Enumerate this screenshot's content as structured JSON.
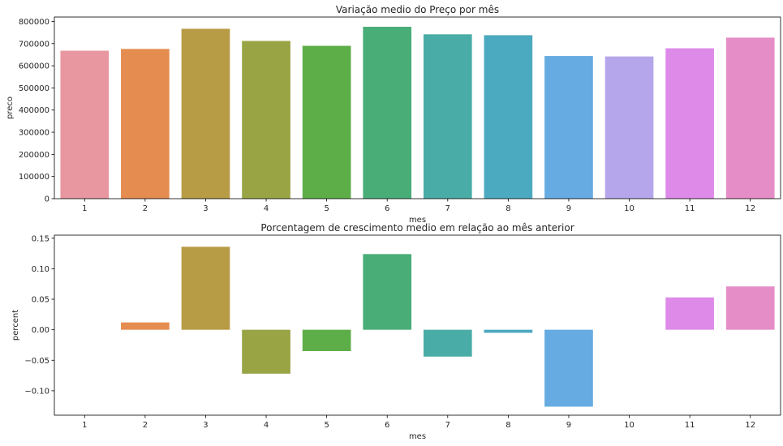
{
  "chart_data": [
    {
      "type": "bar",
      "title": "Variação medio do Preço por mês",
      "xlabel": "mes",
      "ylabel": "preco",
      "categories": [
        "1",
        "2",
        "3",
        "4",
        "5",
        "6",
        "7",
        "8",
        "9",
        "10",
        "11",
        "12"
      ],
      "values": [
        668000,
        676000,
        767000,
        712000,
        690000,
        776000,
        742000,
        738000,
        644000,
        642000,
        679000,
        727000
      ],
      "ylim": [
        0,
        820000
      ],
      "yticks": [
        0,
        100000,
        200000,
        300000,
        400000,
        500000,
        600000,
        700000,
        800000
      ],
      "ytick_labels": [
        "0",
        "100000",
        "200000",
        "300000",
        "400000",
        "500000",
        "600000",
        "700000",
        "800000"
      ],
      "grid": false
    },
    {
      "type": "bar",
      "title": "Porcentagem de crescimento medio em relação ao mês anterior",
      "xlabel": "mes",
      "ylabel": "percent",
      "categories": [
        "1",
        "2",
        "3",
        "4",
        "5",
        "6",
        "7",
        "8",
        "9",
        "10",
        "11",
        "12"
      ],
      "values": [
        null,
        0.012,
        0.136,
        -0.072,
        -0.035,
        0.124,
        -0.044,
        -0.005,
        -0.126,
        null,
        0.053,
        0.071
      ],
      "ylim": [
        -0.14,
        0.155
      ],
      "yticks": [
        -0.1,
        -0.05,
        0,
        0.05,
        0.1,
        0.15
      ],
      "ytick_labels": [
        "−0.10",
        "−0.05",
        "0.00",
        "0.05",
        "0.10",
        "0.15"
      ],
      "grid": false
    }
  ],
  "colors": [
    "#E8969F",
    "#E58D50",
    "#B89B45",
    "#99A545",
    "#5DAE48",
    "#49AD78",
    "#4AACA6",
    "#4BA9C0",
    "#66ABE1",
    "#B5A6EB",
    "#DE8AE9",
    "#E58DC6"
  ]
}
